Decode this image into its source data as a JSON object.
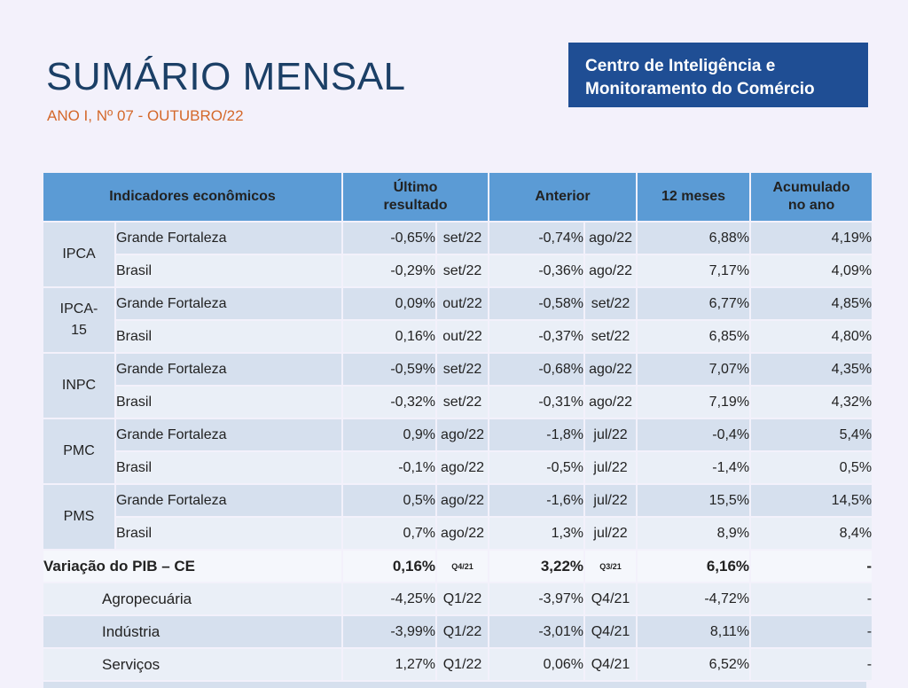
{
  "header": {
    "title": "SUMÁRIO MENSAL",
    "subtitle": "ANO I, Nº 07 - OUTUBRO/22",
    "org_line1": "Centro de Inteligência e",
    "org_line2": "Monitoramento do Comércio"
  },
  "table": {
    "columns": {
      "indicators": "Indicadores econômicos",
      "last_line1": "Último",
      "last_line2": "resultado",
      "previous": "Anterior",
      "twelve": "12 meses",
      "acc_line1": "Acumulado",
      "acc_line2": "no ano"
    },
    "groups": [
      {
        "name_line1": "IPCA",
        "name_line2": "",
        "rows": [
          {
            "label": "Grande Fortaleza",
            "last": "-0,65%",
            "last_ref": "set/22",
            "prev": "-0,74%",
            "prev_ref": "ago/22",
            "m12": "6,88%",
            "acc": "4,19%"
          },
          {
            "label": "Brasil",
            "last": "-0,29%",
            "last_ref": "set/22",
            "prev": "-0,36%",
            "prev_ref": "ago/22",
            "m12": "7,17%",
            "acc": "4,09%"
          }
        ]
      },
      {
        "name_line1": "IPCA-",
        "name_line2": "15",
        "rows": [
          {
            "label": "Grande Fortaleza",
            "last": "0,09%",
            "last_ref": "out/22",
            "prev": "-0,58%",
            "prev_ref": "set/22",
            "m12": "6,77%",
            "acc": "4,85%"
          },
          {
            "label": "Brasil",
            "last": "0,16%",
            "last_ref": "out/22",
            "prev": "-0,37%",
            "prev_ref": "set/22",
            "m12": "6,85%",
            "acc": "4,80%"
          }
        ]
      },
      {
        "name_line1": "INPC",
        "name_line2": "",
        "rows": [
          {
            "label": "Grande Fortaleza",
            "last": "-0,59%",
            "last_ref": "set/22",
            "prev": "-0,68%",
            "prev_ref": "ago/22",
            "m12": "7,07%",
            "acc": "4,35%"
          },
          {
            "label": "Brasil",
            "last": "-0,32%",
            "last_ref": "set/22",
            "prev": "-0,31%",
            "prev_ref": "ago/22",
            "m12": "7,19%",
            "acc": "4,32%"
          }
        ]
      },
      {
        "name_line1": "PMC",
        "name_line2": "",
        "rows": [
          {
            "label": "Grande Fortaleza",
            "last": "0,9%",
            "last_ref": "ago/22",
            "prev": "-1,8%",
            "prev_ref": "jul/22",
            "m12": "-0,4%",
            "acc": "5,4%"
          },
          {
            "label": "Brasil",
            "last": "-0,1%",
            "last_ref": "ago/22",
            "prev": "-0,5%",
            "prev_ref": "jul/22",
            "m12": "-1,4%",
            "acc": "0,5%"
          }
        ]
      },
      {
        "name_line1": "PMS",
        "name_line2": "",
        "rows": [
          {
            "label": "Grande Fortaleza",
            "last": "0,5%",
            "last_ref": "ago/22",
            "prev": "-1,6%",
            "prev_ref": "jul/22",
            "m12": "15,5%",
            "acc": "14,5%"
          },
          {
            "label": "Brasil",
            "last": "0,7%",
            "last_ref": "ago/22",
            "prev": "1,3%",
            "prev_ref": "jul/22",
            "m12": "8,9%",
            "acc": "8,4%"
          }
        ]
      }
    ],
    "pib": {
      "label": "Variação do PIB – CE",
      "last": "0,16%",
      "last_ref": "Q4/21",
      "prev": "3,22%",
      "prev_ref": "Q3/21",
      "m12": "6,16%",
      "acc": "-"
    },
    "pib_sectors": [
      {
        "label": "Agropecuária",
        "last": "-4,25%",
        "last_ref": "Q1/22",
        "prev": "-3,97%",
        "prev_ref": "Q4/21",
        "m12": "-4,72%",
        "acc": "-"
      },
      {
        "label": "Indústria",
        "last": "-3,99%",
        "last_ref": "Q1/22",
        "prev": "-3,01%",
        "prev_ref": "Q4/21",
        "m12": "8,11%",
        "acc": "-"
      },
      {
        "label": "Serviços",
        "last": "1,27%",
        "last_ref": "Q1/22",
        "prev": "0,06%",
        "prev_ref": "Q4/21",
        "m12": "6,52%",
        "acc": "-"
      }
    ]
  }
}
